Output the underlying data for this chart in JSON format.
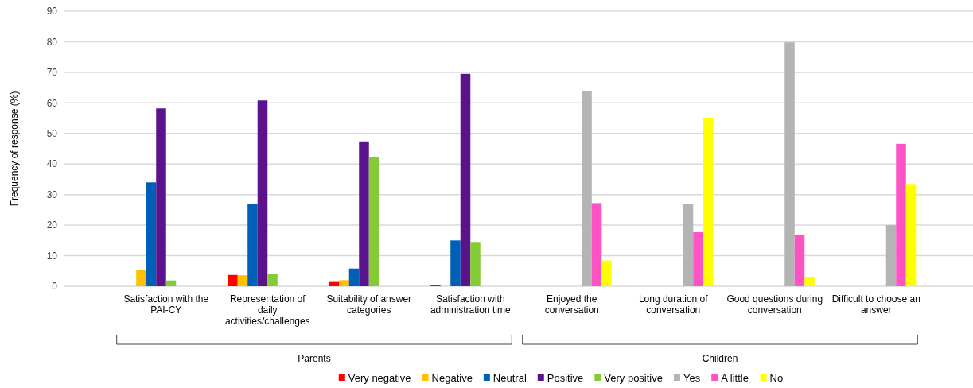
{
  "chart_data": {
    "type": "bar",
    "ylabel": "Frequency of response (%)",
    "categories": [
      "Satisfaction with the PAI-CY",
      "Representation of daily activities/challenges",
      "Suitability of answer categories",
      "Satisfaction with administration time",
      "Enjoyed the conversation",
      "Long duration of conversation",
      "Good questions during conversation",
      "Difficult to choose an answer"
    ],
    "series": [
      {
        "name": "Very negative",
        "color": "#ff0000",
        "values": [
          null,
          3.7,
          1.4,
          0.4,
          null,
          null,
          null,
          null
        ]
      },
      {
        "name": "Negative",
        "color": "#ffc000",
        "values": [
          5.2,
          3.6,
          2.0,
          null,
          null,
          null,
          null,
          null
        ]
      },
      {
        "name": "Neutral",
        "color": "#0060b8",
        "values": [
          34.0,
          27.0,
          5.8,
          15.0,
          null,
          null,
          null,
          null
        ]
      },
      {
        "name": "Positive",
        "color": "#5b138d",
        "values": [
          58.2,
          60.8,
          47.4,
          69.5,
          null,
          null,
          null,
          null
        ]
      },
      {
        "name": "Very positive",
        "color": "#84cc36",
        "values": [
          1.9,
          4.0,
          42.4,
          14.5,
          null,
          null,
          null,
          null
        ]
      },
      {
        "name": "Yes",
        "color": "#b4b4b4",
        "values": [
          null,
          null,
          null,
          null,
          63.8,
          26.9,
          79.8,
          20.0
        ]
      },
      {
        "name": "A little",
        "color": "#ff52c4",
        "values": [
          null,
          null,
          null,
          null,
          27.2,
          17.7,
          16.8,
          46.6
        ]
      },
      {
        "name": "No",
        "color": "#ffff00",
        "values": [
          null,
          null,
          null,
          null,
          8.4,
          54.9,
          3.1,
          33.2
        ]
      }
    ],
    "ylim": [
      0,
      90
    ],
    "yticks": [
      0,
      10,
      20,
      30,
      40,
      50,
      60,
      70,
      80,
      90
    ],
    "grid": "y",
    "legend": "bottom",
    "annotations": [
      "Parents",
      "Children"
    ]
  }
}
